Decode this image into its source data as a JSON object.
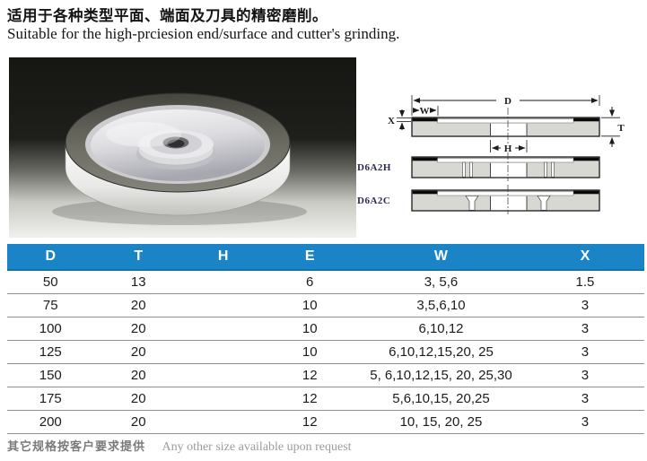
{
  "header": {
    "title_zh": "适用于各种类型平面、端面及刀具的精密磨削。",
    "title_en": "Suitable for the high-prciesion end/surface and cutter's grinding."
  },
  "diagram": {
    "dims": {
      "d": "D",
      "w": "W",
      "x": "X",
      "t": "T",
      "h": "H"
    },
    "models": [
      "D6A2H",
      "D6A2C"
    ]
  },
  "table": {
    "columns": [
      "D",
      "T",
      "H",
      "E",
      "W",
      "X"
    ],
    "rows": [
      [
        "50",
        "13",
        "",
        "6",
        "3, 5,6",
        "1.5"
      ],
      [
        "75",
        "20",
        "",
        "10",
        "3,5,6,10",
        "3"
      ],
      [
        "100",
        "20",
        "",
        "10",
        "6,10,12",
        "3"
      ],
      [
        "125",
        "20",
        "",
        "10",
        "6,10,12,15,20, 25",
        "3"
      ],
      [
        "150",
        "20",
        "",
        "12",
        "5, 6,10,12,15, 20, 25,30",
        "3"
      ],
      [
        "175",
        "20",
        "",
        "12",
        "5,6,10,15, 20,25",
        "3"
      ],
      [
        "200",
        "20",
        "",
        "12",
        "10, 15, 20, 25",
        "3"
      ]
    ]
  },
  "footer": {
    "note_zh": "其它规格按客户要求提供",
    "note_en": "Any other size available upon request"
  },
  "colors": {
    "table_header_bg": "#1a84c6",
    "diagram_body": "#d8d8d3",
    "abrasive_strip": "#0a0a0a"
  }
}
